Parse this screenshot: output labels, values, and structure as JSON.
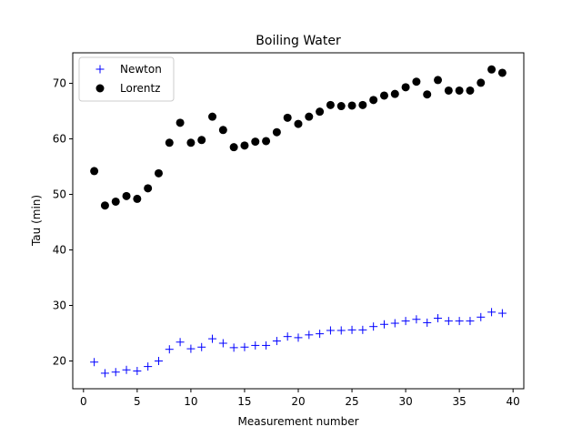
{
  "chart_data": {
    "type": "scatter",
    "title": "Boiling Water",
    "xlabel": "Measurement number",
    "ylabel": "Tau (min)",
    "xlim": [
      -1,
      41
    ],
    "ylim": [
      15,
      75.5
    ],
    "xticks": [
      0,
      5,
      10,
      15,
      20,
      25,
      30,
      35,
      40
    ],
    "yticks": [
      20,
      30,
      40,
      50,
      60,
      70
    ],
    "grid": false,
    "legend_position": "top-left",
    "series": [
      {
        "name": "Newton",
        "marker": "plus",
        "color": "#0000ff",
        "x": [
          1,
          2,
          3,
          4,
          5,
          6,
          7,
          8,
          9,
          10,
          11,
          12,
          13,
          14,
          15,
          16,
          17,
          18,
          19,
          20,
          21,
          22,
          23,
          24,
          25,
          26,
          27,
          28,
          29,
          30,
          31,
          32,
          33,
          34,
          35,
          36,
          37,
          38,
          39
        ],
        "y": [
          19.8,
          17.8,
          18.0,
          18.4,
          18.2,
          19.0,
          20.0,
          22.1,
          23.4,
          22.2,
          22.5,
          24.0,
          23.2,
          22.4,
          22.5,
          22.8,
          22.8,
          23.6,
          24.4,
          24.2,
          24.7,
          24.9,
          25.5,
          25.5,
          25.6,
          25.6,
          26.2,
          26.6,
          26.8,
          27.2,
          27.5,
          26.9,
          27.7,
          27.2,
          27.2,
          27.2,
          27.9,
          28.8,
          28.6
        ]
      },
      {
        "name": "Lorentz",
        "marker": "circle",
        "color": "#000000",
        "x": [
          1,
          2,
          3,
          4,
          5,
          6,
          7,
          8,
          9,
          10,
          11,
          12,
          13,
          14,
          15,
          16,
          17,
          18,
          19,
          20,
          21,
          22,
          23,
          24,
          25,
          26,
          27,
          28,
          29,
          30,
          31,
          32,
          33,
          34,
          35,
          36,
          37,
          38,
          39
        ],
        "y": [
          54.2,
          48.0,
          48.7,
          49.7,
          49.2,
          51.1,
          53.8,
          59.3,
          62.9,
          59.3,
          59.8,
          64.0,
          61.6,
          58.5,
          58.8,
          59.5,
          59.6,
          61.2,
          63.8,
          62.7,
          64.0,
          64.9,
          66.1,
          65.9,
          66.0,
          66.1,
          67.0,
          67.8,
          68.1,
          69.3,
          70.3,
          68.0,
          70.6,
          68.7,
          68.7,
          68.7,
          70.1,
          72.5,
          71.9
        ]
      }
    ]
  }
}
